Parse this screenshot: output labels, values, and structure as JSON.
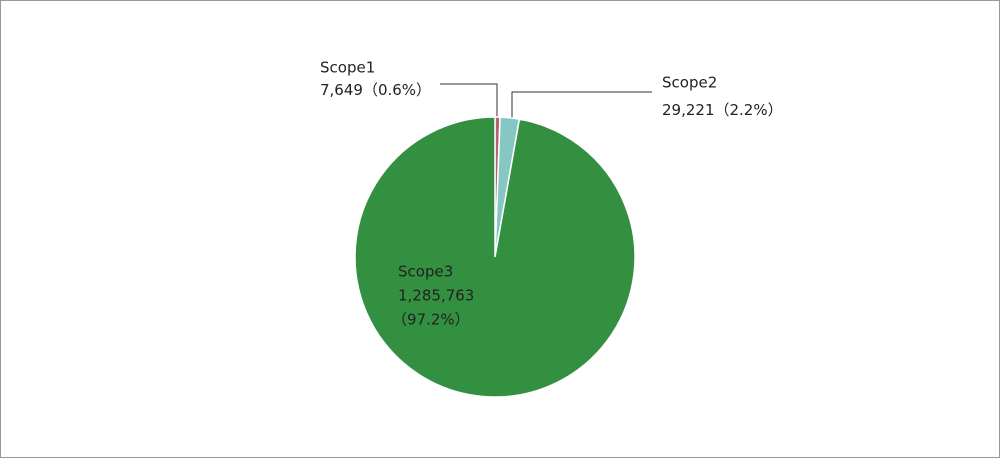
{
  "chart_data": {
    "type": "pie",
    "categories": [
      "Scope1",
      "Scope2",
      "Scope3"
    ],
    "values": [
      7649,
      29221,
      1285763
    ],
    "value_labels": [
      "7,649",
      "29,221",
      "1,285,763"
    ],
    "percent_labels": [
      "（0.6%）",
      "（2.2%）",
      "（97.2%）"
    ],
    "colors": [
      "#b5646f",
      "#86c7c3",
      "#339040"
    ]
  }
}
